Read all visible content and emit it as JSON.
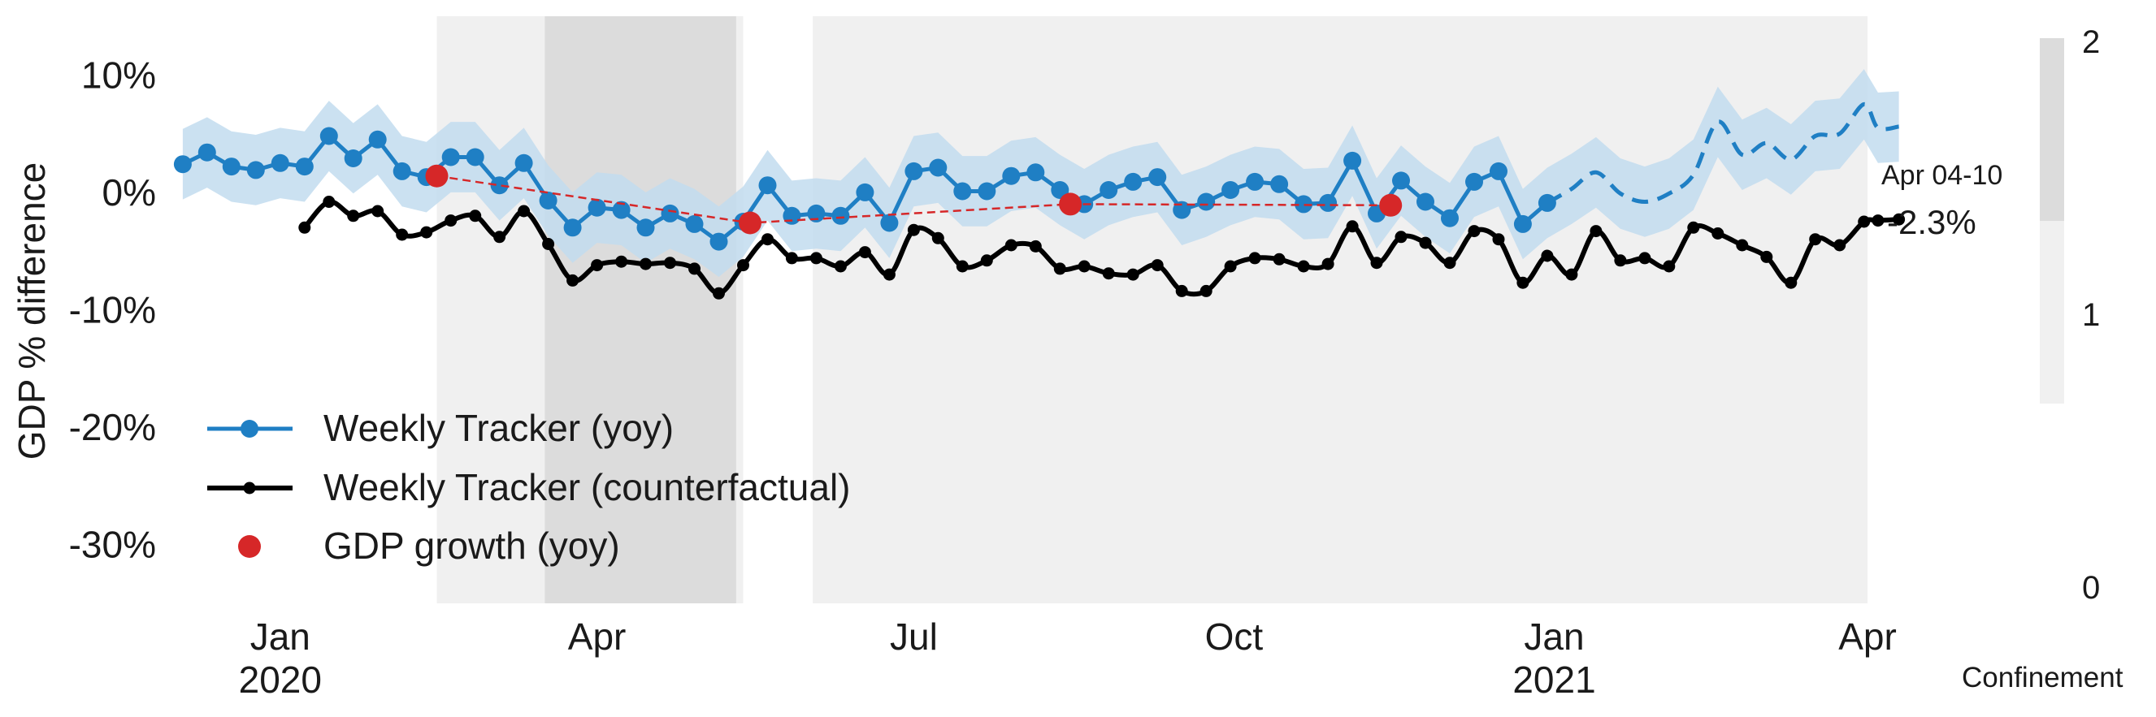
{
  "chart_data": {
    "type": "line",
    "ylabel": "GDP % difference",
    "ylim": [
      -35,
      15
    ],
    "yticks": [
      {
        "value": 10,
        "label": "10%"
      },
      {
        "value": 0,
        "label": "0%"
      },
      {
        "value": -10,
        "label": "-10%"
      },
      {
        "value": -20,
        "label": "-20%"
      },
      {
        "value": -30,
        "label": "-30%"
      }
    ],
    "xlim": [
      "2019-12-01",
      "2021-04-01"
    ],
    "xticks": [
      {
        "date": "2020-01-01",
        "label": "Jan",
        "year": "2020"
      },
      {
        "date": "2020-04-01",
        "label": "Apr",
        "year": ""
      },
      {
        "date": "2020-07-01",
        "label": "Jul",
        "year": ""
      },
      {
        "date": "2020-10-01",
        "label": "Oct",
        "year": ""
      },
      {
        "date": "2021-01-01",
        "label": "Jan",
        "year": "2021"
      },
      {
        "date": "2021-04-01",
        "label": "Apr",
        "year": ""
      }
    ],
    "grid": false,
    "legend_position": "lower-left",
    "legend": [
      {
        "label": "Weekly Tracker (yoy)",
        "color": "#1f7fc4",
        "marker": "line-dot"
      },
      {
        "label": "Weekly Tracker (counterfactual)",
        "color": "#000000",
        "marker": "line-dot-small"
      },
      {
        "label": "GDP growth (yoy)",
        "color": "#d62728",
        "marker": "dot"
      }
    ],
    "last_label": {
      "period": "Apr 04-10",
      "value": "-2.3%"
    },
    "confinement": {
      "title": "Confinement",
      "ticks": [
        "2",
        "1",
        "0"
      ],
      "colors": {
        "1": "#f0f0f0",
        "2": "#dcdcdc"
      },
      "periods": [
        {
          "start": "2020-02-15",
          "end": "2020-03-17",
          "level": 1
        },
        {
          "start": "2020-03-17",
          "end": "2020-05-11",
          "level": 2
        },
        {
          "start": "2020-05-11",
          "end": "2020-05-13",
          "level": 1
        },
        {
          "start": "2020-06-02",
          "end": "2021-04-01",
          "level": 1
        }
      ]
    },
    "series": [
      {
        "name": "Weekly Tracker (yoy)",
        "color": "#1f7fc4",
        "band_color": "#c2dcee",
        "band_width": 3,
        "solid": [
          [
            "2019-12-04",
            2.4
          ],
          [
            "2019-12-11",
            3.4
          ],
          [
            "2019-12-18",
            2.2
          ],
          [
            "2019-12-25",
            1.9
          ],
          [
            "2020-01-01",
            2.5
          ],
          [
            "2020-01-08",
            2.2
          ],
          [
            "2020-01-15",
            4.8
          ],
          [
            "2020-01-22",
            2.9
          ],
          [
            "2020-01-29",
            4.5
          ],
          [
            "2020-02-05",
            1.8
          ],
          [
            "2020-02-12",
            1.3
          ],
          [
            "2020-02-19",
            3.0
          ],
          [
            "2020-02-26",
            3.0
          ],
          [
            "2020-03-04",
            0.6
          ],
          [
            "2020-03-11",
            2.5
          ],
          [
            "2020-03-18",
            -0.7
          ],
          [
            "2020-03-25",
            -3.0
          ],
          [
            "2020-04-01",
            -1.3
          ],
          [
            "2020-04-08",
            -1.5
          ],
          [
            "2020-04-15",
            -3.0
          ],
          [
            "2020-04-22",
            -1.8
          ],
          [
            "2020-04-29",
            -2.7
          ],
          [
            "2020-05-06",
            -4.2
          ],
          [
            "2020-05-13",
            -2.5
          ],
          [
            "2020-05-20",
            0.6
          ],
          [
            "2020-05-27",
            -2.0
          ],
          [
            "2020-06-03",
            -1.8
          ],
          [
            "2020-06-10",
            -2.0
          ],
          [
            "2020-06-17",
            0.0
          ],
          [
            "2020-06-24",
            -2.6
          ],
          [
            "2020-07-01",
            1.8
          ],
          [
            "2020-07-08",
            2.1
          ],
          [
            "2020-07-15",
            0.1
          ],
          [
            "2020-07-22",
            0.1
          ],
          [
            "2020-07-29",
            1.4
          ],
          [
            "2020-08-05",
            1.7
          ],
          [
            "2020-08-12",
            0.2
          ],
          [
            "2020-08-19",
            -1.0
          ],
          [
            "2020-08-26",
            0.2
          ],
          [
            "2020-09-02",
            0.9
          ],
          [
            "2020-09-09",
            1.3
          ],
          [
            "2020-09-16",
            -1.5
          ],
          [
            "2020-09-23",
            -0.8
          ],
          [
            "2020-09-30",
            0.2
          ],
          [
            "2020-10-07",
            0.9
          ],
          [
            "2020-10-14",
            0.7
          ],
          [
            "2020-10-21",
            -1.0
          ],
          [
            "2020-10-28",
            -0.9
          ],
          [
            "2020-11-04",
            2.7
          ],
          [
            "2020-11-11",
            -1.8
          ],
          [
            "2020-11-18",
            1.0
          ],
          [
            "2020-11-25",
            -0.8
          ],
          [
            "2020-12-02",
            -2.2
          ],
          [
            "2020-12-09",
            0.9
          ],
          [
            "2020-12-16",
            1.8
          ],
          [
            "2020-12-23",
            -2.7
          ],
          [
            "2020-12-30",
            -0.9
          ]
        ],
        "dashed": [
          [
            "2020-12-30",
            -0.9
          ],
          [
            "2021-01-06",
            0.3
          ],
          [
            "2021-01-13",
            1.7
          ],
          [
            "2021-01-20",
            -0.1
          ],
          [
            "2021-01-27",
            -0.8
          ],
          [
            "2021-02-03",
            -0.1
          ],
          [
            "2021-02-10",
            1.5
          ],
          [
            "2021-02-17",
            6.0
          ],
          [
            "2021-02-24",
            3.2
          ],
          [
            "2021-03-03",
            4.2
          ],
          [
            "2021-03-10",
            2.8
          ],
          [
            "2021-03-17",
            4.8
          ],
          [
            "2021-03-24",
            5.0
          ],
          [
            "2021-03-31",
            7.5
          ],
          [
            "2021-04-04",
            5.5
          ],
          [
            "2021-04-10",
            5.6
          ]
        ]
      },
      {
        "name": "Weekly Tracker (counterfactual)",
        "color": "#000000",
        "points": [
          [
            "2020-01-08",
            -3.0
          ],
          [
            "2020-01-15",
            -0.8
          ],
          [
            "2020-01-22",
            -2.0
          ],
          [
            "2020-01-29",
            -1.6
          ],
          [
            "2020-02-05",
            -3.6
          ],
          [
            "2020-02-12",
            -3.4
          ],
          [
            "2020-02-19",
            -2.4
          ],
          [
            "2020-02-26",
            -2.0
          ],
          [
            "2020-03-04",
            -3.8
          ],
          [
            "2020-03-11",
            -1.6
          ],
          [
            "2020-03-18",
            -4.4
          ],
          [
            "2020-03-25",
            -7.5
          ],
          [
            "2020-04-01",
            -6.2
          ],
          [
            "2020-04-08",
            -5.9
          ],
          [
            "2020-04-15",
            -6.1
          ],
          [
            "2020-04-22",
            -6.0
          ],
          [
            "2020-04-29",
            -6.5
          ],
          [
            "2020-05-06",
            -8.6
          ],
          [
            "2020-05-13",
            -6.2
          ],
          [
            "2020-05-20",
            -4.0
          ],
          [
            "2020-05-27",
            -5.6
          ],
          [
            "2020-06-03",
            -5.6
          ],
          [
            "2020-06-10",
            -6.3
          ],
          [
            "2020-06-17",
            -5.1
          ],
          [
            "2020-06-24",
            -7.0
          ],
          [
            "2020-07-01",
            -3.2
          ],
          [
            "2020-07-08",
            -3.9
          ],
          [
            "2020-07-15",
            -6.3
          ],
          [
            "2020-07-22",
            -5.8
          ],
          [
            "2020-07-29",
            -4.5
          ],
          [
            "2020-08-05",
            -4.6
          ],
          [
            "2020-08-12",
            -6.5
          ],
          [
            "2020-08-19",
            -6.3
          ],
          [
            "2020-08-26",
            -6.9
          ],
          [
            "2020-09-02",
            -7.0
          ],
          [
            "2020-09-09",
            -6.2
          ],
          [
            "2020-09-16",
            -8.4
          ],
          [
            "2020-09-23",
            -8.4
          ],
          [
            "2020-09-30",
            -6.3
          ],
          [
            "2020-10-07",
            -5.6
          ],
          [
            "2020-10-14",
            -5.7
          ],
          [
            "2020-10-21",
            -6.3
          ],
          [
            "2020-10-28",
            -6.1
          ],
          [
            "2020-11-04",
            -2.9
          ],
          [
            "2020-11-11",
            -6.0
          ],
          [
            "2020-11-18",
            -3.8
          ],
          [
            "2020-11-25",
            -4.3
          ],
          [
            "2020-12-02",
            -6.0
          ],
          [
            "2020-12-09",
            -3.3
          ],
          [
            "2020-12-16",
            -4.0
          ],
          [
            "2020-12-23",
            -7.7
          ],
          [
            "2020-12-30",
            -5.4
          ],
          [
            "2021-01-06",
            -7.0
          ],
          [
            "2021-01-13",
            -3.3
          ],
          [
            "2021-01-20",
            -5.8
          ],
          [
            "2021-01-27",
            -5.6
          ],
          [
            "2021-02-03",
            -6.3
          ],
          [
            "2021-02-10",
            -3.0
          ],
          [
            "2021-02-17",
            -3.5
          ],
          [
            "2021-02-24",
            -4.5
          ],
          [
            "2021-03-03",
            -5.5
          ],
          [
            "2021-03-10",
            -7.7
          ],
          [
            "2021-03-17",
            -4.0
          ],
          [
            "2021-03-24",
            -4.5
          ],
          [
            "2021-03-31",
            -2.5
          ],
          [
            "2021-04-04",
            -2.4
          ],
          [
            "2021-04-10",
            -2.3
          ]
        ]
      },
      {
        "name": "GDP growth (yoy)",
        "color": "#d62728",
        "points": [
          [
            "2020-02-15",
            1.4
          ],
          [
            "2020-05-15",
            -2.6
          ],
          [
            "2020-08-15",
            -1.0
          ],
          [
            "2020-11-15",
            -1.1
          ]
        ]
      }
    ]
  }
}
